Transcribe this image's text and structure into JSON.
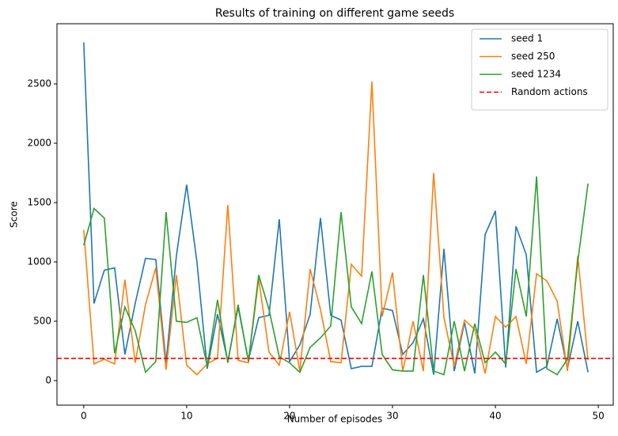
{
  "chart_data": {
    "type": "line",
    "title": "Results of training on different game seeds",
    "x_label": "Number of episodes",
    "y_label": "Score",
    "x": [
      0,
      1,
      2,
      3,
      4,
      5,
      6,
      7,
      8,
      9,
      10,
      11,
      12,
      13,
      14,
      15,
      16,
      17,
      18,
      19,
      20,
      21,
      22,
      23,
      24,
      25,
      26,
      27,
      28,
      29,
      30,
      31,
      32,
      33,
      34,
      35,
      36,
      37,
      38,
      39,
      40,
      41,
      42,
      43,
      44,
      45,
      46,
      47,
      48,
      49
    ],
    "series": [
      {
        "name": "seed 1",
        "color": "#1f77b4",
        "values": [
          2850,
          650,
          930,
          950,
          220,
          650,
          1030,
          1020,
          150,
          1050,
          1650,
          1000,
          100,
          560,
          160,
          620,
          170,
          530,
          550,
          1360,
          160,
          300,
          560,
          1370,
          550,
          510,
          100,
          120,
          120,
          610,
          590,
          220,
          320,
          520,
          50,
          1110,
          80,
          490,
          60,
          1230,
          1430,
          110,
          1300,
          1060,
          70,
          120,
          520,
          100,
          500,
          70
        ]
      },
      {
        "name": "seed 250",
        "color": "#ff7f0e",
        "values": [
          1270,
          140,
          180,
          140,
          850,
          150,
          640,
          950,
          90,
          890,
          130,
          50,
          140,
          190,
          1480,
          170,
          150,
          860,
          240,
          130,
          580,
          80,
          940,
          600,
          160,
          150,
          980,
          880,
          2520,
          540,
          910,
          80,
          500,
          80,
          1750,
          530,
          120,
          510,
          430,
          60,
          540,
          450,
          540,
          140,
          900,
          840,
          670,
          80,
          1050,
          170
        ]
      },
      {
        "name": "seed 1234",
        "color": "#2ca02c",
        "values": [
          1140,
          1450,
          1370,
          230,
          620,
          420,
          70,
          160,
          1420,
          500,
          490,
          530,
          120,
          680,
          150,
          640,
          160,
          890,
          600,
          200,
          150,
          70,
          280,
          360,
          460,
          1420,
          620,
          480,
          920,
          220,
          90,
          80,
          80,
          890,
          80,
          50,
          500,
          80,
          480,
          150,
          240,
          140,
          940,
          540,
          1720,
          100,
          50,
          180,
          1000,
          1660
        ]
      }
    ],
    "reference_lines": [
      {
        "name": "Random actions",
        "value": 187,
        "color": "#ff0000",
        "style": "dashed"
      }
    ],
    "xlim": [
      -2.6,
      51.45
    ],
    "xticks": [
      0,
      10,
      20,
      30,
      40,
      50
    ],
    "ylim": [
      -207,
      3007
    ],
    "yticks": [
      0,
      500,
      1000,
      1500,
      2000,
      2500
    ],
    "legend": "upper right"
  }
}
